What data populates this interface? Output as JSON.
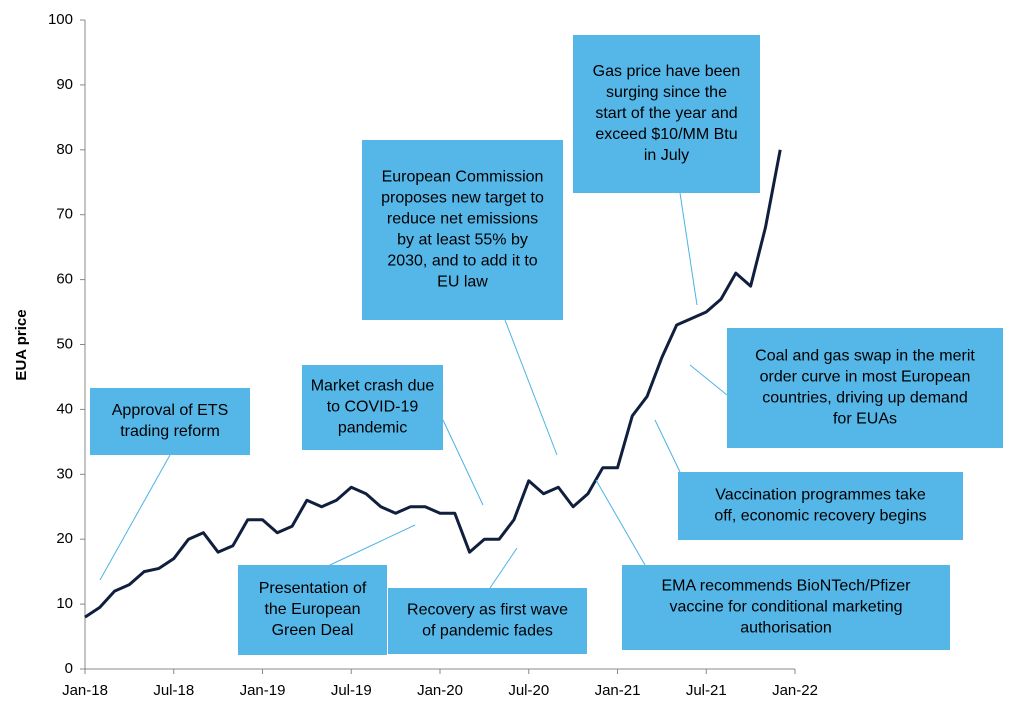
{
  "chart_data": {
    "type": "line",
    "y_label": "EUA price",
    "categories": [
      "Jan-18",
      null,
      null,
      null,
      null,
      null,
      "Jul-18",
      null,
      null,
      null,
      null,
      null,
      "Jan-19",
      null,
      null,
      null,
      null,
      null,
      "Jul-19",
      null,
      null,
      null,
      null,
      null,
      "Jan-20",
      null,
      null,
      null,
      null,
      null,
      "Jul-20",
      null,
      null,
      null,
      null,
      null,
      "Jan-21",
      null,
      null,
      null,
      null,
      null,
      "Jul-21",
      null,
      null,
      null,
      null,
      null,
      "Jan-22"
    ],
    "series": [
      {
        "name": "EUA price",
        "color": "#0f1f3d",
        "values": [
          8,
          9.5,
          12,
          13,
          15,
          15.5,
          17,
          20,
          21,
          18,
          19,
          23,
          23,
          21,
          22,
          26,
          25,
          26,
          28,
          27,
          25,
          24,
          25,
          25,
          24,
          24,
          18,
          20,
          20,
          23,
          29,
          27,
          28,
          25,
          27,
          31,
          31,
          39,
          42,
          48,
          53,
          54,
          55,
          57,
          61,
          59,
          68,
          80,
          null
        ]
      }
    ],
    "ylim": [
      0,
      100
    ],
    "yticks": [
      0,
      10,
      20,
      30,
      40,
      50,
      60,
      70,
      80,
      90,
      100
    ],
    "annotations": [
      {
        "lines": [
          "Approval of ETS",
          "trading reform"
        ]
      },
      {
        "lines": [
          "Presentation of",
          "the European",
          "Green Deal"
        ]
      },
      {
        "lines": [
          "Market crash due",
          "to COVID-19",
          "pandemic"
        ]
      },
      {
        "lines": [
          "Recovery as first wave",
          "of pandemic fades"
        ]
      },
      {
        "lines": [
          "European Commission",
          "proposes new target to",
          "reduce net emissions",
          "by at least 55% by",
          "2030, and to add it to",
          "EU law"
        ]
      },
      {
        "lines": [
          "Gas price have been",
          "surging since the",
          "start of the year and",
          "exceed $10/MM Btu",
          "in July"
        ]
      },
      {
        "lines": [
          "Coal and gas swap in the merit",
          "order curve in most European",
          "countries, driving up demand",
          "for EUAs"
        ]
      },
      {
        "lines": [
          "Vaccination programmes take",
          "off, economic recovery begins"
        ]
      },
      {
        "lines": [
          "EMA recommends BioNTech/Pfizer",
          "vaccine for conditional marketing",
          "authorisation"
        ]
      }
    ]
  }
}
